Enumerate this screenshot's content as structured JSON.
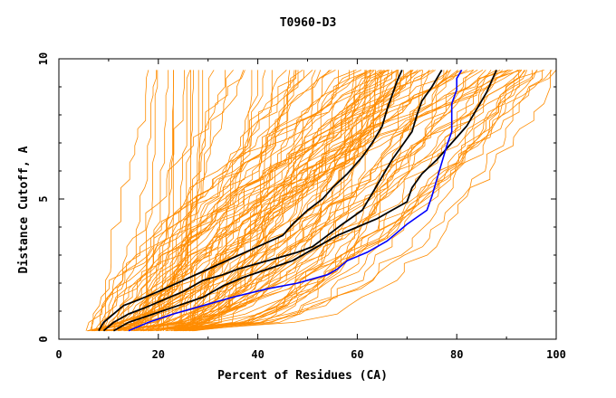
{
  "chart_data": {
    "type": "line",
    "title": "T0960-D3",
    "xlabel": "Percent of Residues (CA)",
    "ylabel": "Distance Cutoff, A",
    "xlim": [
      0,
      100
    ],
    "ylim": [
      0,
      10
    ],
    "xticks": [
      "0",
      "20",
      "40",
      "60",
      "80",
      "100"
    ],
    "yticks": [
      "0",
      "5",
      "10"
    ],
    "grid": false,
    "background_series_color": "#ff8c00",
    "background_series_count": 120,
    "series": [
      {
        "color": "#000000",
        "points": [
          [
            8,
            0.3
          ],
          [
            9,
            0.6
          ],
          [
            11,
            0.9
          ],
          [
            13,
            1.2
          ],
          [
            16,
            1.4
          ],
          [
            20,
            1.7
          ],
          [
            25,
            2.1
          ],
          [
            30,
            2.5
          ],
          [
            35,
            2.9
          ],
          [
            40,
            3.3
          ],
          [
            45,
            3.7
          ],
          [
            47,
            4.1
          ],
          [
            50,
            4.6
          ],
          [
            53,
            5.0
          ],
          [
            55,
            5.4
          ],
          [
            58,
            5.9
          ],
          [
            61,
            6.5
          ],
          [
            63,
            7.0
          ],
          [
            65,
            7.6
          ],
          [
            66,
            8.2
          ],
          [
            67,
            8.7
          ],
          [
            68,
            9.2
          ],
          [
            69,
            9.6
          ]
        ]
      },
      {
        "color": "#000000",
        "points": [
          [
            9,
            0.3
          ],
          [
            11,
            0.6
          ],
          [
            14,
            0.9
          ],
          [
            17,
            1.1
          ],
          [
            21,
            1.4
          ],
          [
            25,
            1.7
          ],
          [
            29,
            2.1
          ],
          [
            33,
            2.3
          ],
          [
            36,
            2.5
          ],
          [
            40,
            2.7
          ],
          [
            44,
            2.9
          ],
          [
            48,
            3.1
          ],
          [
            51,
            3.3
          ],
          [
            54,
            3.7
          ],
          [
            57,
            4.1
          ],
          [
            61,
            4.6
          ],
          [
            63,
            5.2
          ],
          [
            65,
            5.8
          ],
          [
            67,
            6.4
          ],
          [
            69,
            6.9
          ],
          [
            71,
            7.4
          ],
          [
            72,
            8.0
          ],
          [
            73,
            8.5
          ],
          [
            75,
            9.0
          ],
          [
            77,
            9.6
          ]
        ]
      },
      {
        "color": "#000000",
        "points": [
          [
            11,
            0.3
          ],
          [
            14,
            0.6
          ],
          [
            19,
            0.9
          ],
          [
            24,
            1.2
          ],
          [
            29,
            1.5
          ],
          [
            33,
            1.9
          ],
          [
            37,
            2.2
          ],
          [
            42,
            2.5
          ],
          [
            47,
            2.8
          ],
          [
            52,
            3.3
          ],
          [
            56,
            3.7
          ],
          [
            60,
            4.0
          ],
          [
            64,
            4.3
          ],
          [
            67,
            4.6
          ],
          [
            70,
            4.9
          ],
          [
            71,
            5.4
          ],
          [
            73,
            5.9
          ],
          [
            76,
            6.4
          ],
          [
            79,
            7.0
          ],
          [
            82,
            7.6
          ],
          [
            84,
            8.2
          ],
          [
            86,
            8.8
          ],
          [
            87,
            9.2
          ],
          [
            88,
            9.6
          ]
        ]
      },
      {
        "color": "#0000ff",
        "points": [
          [
            14,
            0.3
          ],
          [
            18,
            0.6
          ],
          [
            23,
            0.9
          ],
          [
            29,
            1.2
          ],
          [
            35,
            1.5
          ],
          [
            42,
            1.8
          ],
          [
            48,
            2.0
          ],
          [
            54,
            2.3
          ],
          [
            56,
            2.5
          ],
          [
            58,
            2.8
          ],
          [
            62,
            3.1
          ],
          [
            66,
            3.5
          ],
          [
            70,
            4.1
          ],
          [
            74,
            4.6
          ],
          [
            75,
            5.1
          ],
          [
            76,
            5.7
          ],
          [
            77,
            6.3
          ],
          [
            78,
            6.9
          ],
          [
            79,
            7.4
          ],
          [
            79,
            7.9
          ],
          [
            79,
            8.4
          ],
          [
            80,
            8.9
          ],
          [
            80,
            9.3
          ],
          [
            81,
            9.6
          ]
        ]
      }
    ]
  }
}
